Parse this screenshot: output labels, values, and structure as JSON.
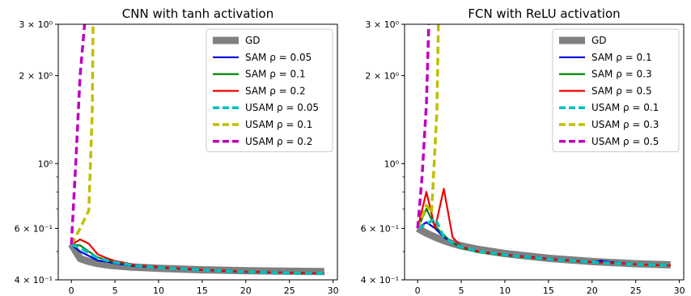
{
  "chart_data": [
    {
      "type": "line",
      "title": "CNN with tanh activation",
      "xlabel": "",
      "ylabel": "",
      "yscale": "log",
      "xlim": [
        -1.5,
        30.5
      ],
      "ylim": [
        0.4,
        3.0
      ],
      "xticks": [
        0,
        5,
        10,
        15,
        20,
        25,
        30
      ],
      "yticks": [
        {
          "value": 0.4,
          "label": "4 × 10⁻¹"
        },
        {
          "value": 0.6,
          "label": "6 × 10⁻¹"
        },
        {
          "value": 1.0,
          "label": "10⁰"
        },
        {
          "value": 2.0,
          "label": "2 × 10⁰"
        },
        {
          "value": 3.0,
          "label": "3 × 10⁰"
        }
      ],
      "legend_position": "top-right",
      "series": [
        {
          "name": "GD",
          "color": "#808080",
          "style": "solid-thick",
          "x": [
            0,
            1,
            2,
            3,
            4,
            5,
            7,
            10,
            15,
            20,
            25,
            29
          ],
          "y": [
            0.53,
            0.473,
            0.462,
            0.455,
            0.45,
            0.447,
            0.442,
            0.438,
            0.433,
            0.43,
            0.428,
            0.427
          ]
        },
        {
          "name": "SAM ρ = 0.05",
          "color": "#0000dd",
          "style": "solid",
          "x": [
            0,
            1,
            2,
            3,
            4,
            5,
            7,
            10,
            15,
            20,
            25,
            29
          ],
          "y": [
            0.528,
            0.5,
            0.483,
            0.466,
            0.462,
            0.456,
            0.447,
            0.441,
            0.432,
            0.426,
            0.423,
            0.421
          ]
        },
        {
          "name": "SAM ρ = 0.1",
          "color": "#008000",
          "style": "solid",
          "x": [
            0,
            1,
            2,
            3,
            4,
            5,
            7,
            10,
            15,
            20,
            25,
            29
          ],
          "y": [
            0.528,
            0.525,
            0.5,
            0.478,
            0.468,
            0.46,
            0.45,
            0.442,
            0.433,
            0.427,
            0.423,
            0.421
          ]
        },
        {
          "name": "SAM ρ = 0.2",
          "color": "#ee0000",
          "style": "solid",
          "x": [
            0,
            1,
            2,
            3,
            4,
            5,
            7,
            10,
            15,
            20,
            25,
            29
          ],
          "y": [
            0.528,
            0.55,
            0.532,
            0.49,
            0.475,
            0.464,
            0.452,
            0.443,
            0.433,
            0.427,
            0.423,
            0.421
          ]
        },
        {
          "name": "USAM ρ = 0.05",
          "color": "#00bfbf",
          "style": "dashed",
          "x": [
            0,
            1,
            2,
            3,
            4,
            5,
            7,
            10,
            15,
            20,
            25,
            29
          ],
          "y": [
            0.528,
            0.515,
            0.495,
            0.475,
            0.466,
            0.459,
            0.449,
            0.441,
            0.432,
            0.426,
            0.422,
            0.421
          ]
        },
        {
          "name": "USAM ρ = 0.1",
          "color": "#bfbf00",
          "style": "dashed",
          "x": [
            0,
            1,
            2,
            2.4,
            2.5
          ],
          "y": [
            0.528,
            0.6,
            0.69,
            1.5,
            3.2
          ]
        },
        {
          "name": "USAM ρ = 0.2",
          "color": "#bf00bf",
          "style": "dashed",
          "x": [
            0,
            0.5,
            1,
            1.6
          ],
          "y": [
            0.528,
            1.0,
            2.0,
            3.2
          ]
        }
      ]
    },
    {
      "type": "line",
      "title": "FCN with ReLU activation",
      "xlabel": "",
      "ylabel": "",
      "yscale": "log",
      "xlim": [
        -1.5,
        30.5
      ],
      "ylim": [
        0.4,
        3.0
      ],
      "xticks": [
        0,
        5,
        10,
        15,
        20,
        25,
        30
      ],
      "yticks": [
        {
          "value": 0.4,
          "label": "4 × 10⁻¹"
        },
        {
          "value": 0.6,
          "label": "6 × 10⁻¹"
        },
        {
          "value": 1.0,
          "label": "10⁰"
        },
        {
          "value": 2.0,
          "label": "2 × 10⁰"
        },
        {
          "value": 3.0,
          "label": "3 × 10⁰"
        }
      ],
      "legend_position": "top-right",
      "series": [
        {
          "name": "GD",
          "color": "#808080",
          "style": "solid-thick",
          "x": [
            0,
            1,
            2,
            3,
            4,
            5,
            7,
            10,
            15,
            20,
            25,
            29
          ],
          "y": [
            0.6,
            0.578,
            0.56,
            0.545,
            0.533,
            0.523,
            0.508,
            0.492,
            0.474,
            0.462,
            0.454,
            0.45
          ]
        },
        {
          "name": "SAM ρ = 0.1",
          "color": "#0000dd",
          "style": "solid",
          "x": [
            0,
            1,
            2,
            3,
            4,
            5,
            7,
            10,
            15,
            20,
            21,
            22,
            25,
            29
          ],
          "y": [
            0.6,
            0.63,
            0.6,
            0.56,
            0.535,
            0.518,
            0.5,
            0.488,
            0.472,
            0.46,
            0.465,
            0.46,
            0.452,
            0.448
          ]
        },
        {
          "name": "SAM ρ = 0.3",
          "color": "#008000",
          "style": "solid",
          "x": [
            0,
            1,
            2,
            3,
            4,
            5,
            7,
            10,
            15,
            20,
            25,
            29
          ],
          "y": [
            0.6,
            0.7,
            0.61,
            0.57,
            0.535,
            0.515,
            0.497,
            0.485,
            0.47,
            0.46,
            0.452,
            0.448
          ]
        },
        {
          "name": "SAM ρ = 0.5",
          "color": "#ee0000",
          "style": "solid",
          "x": [
            0,
            1,
            2,
            3,
            4,
            5,
            7,
            10,
            15,
            20,
            25,
            29
          ],
          "y": [
            0.6,
            0.8,
            0.6,
            0.82,
            0.56,
            0.52,
            0.5,
            0.487,
            0.471,
            0.46,
            0.452,
            0.448
          ]
        },
        {
          "name": "USAM ρ = 0.1",
          "color": "#00bfbf",
          "style": "dashed",
          "x": [
            0,
            1,
            2,
            3,
            4,
            5,
            7,
            10,
            15,
            20,
            25,
            29
          ],
          "y": [
            0.6,
            0.62,
            0.65,
            0.56,
            0.535,
            0.518,
            0.5,
            0.487,
            0.471,
            0.46,
            0.452,
            0.448
          ]
        },
        {
          "name": "USAM ρ = 0.3",
          "color": "#bfbf00",
          "style": "dashed",
          "x": [
            0,
            1,
            1.6,
            2.2,
            2.4
          ],
          "y": [
            0.6,
            0.72,
            0.68,
            1.5,
            3.2
          ]
        },
        {
          "name": "USAM ρ = 0.5",
          "color": "#bf00bf",
          "style": "dashed",
          "x": [
            0,
            0.5,
            1,
            1.3
          ],
          "y": [
            0.6,
            0.9,
            1.6,
            3.2
          ]
        }
      ]
    }
  ]
}
